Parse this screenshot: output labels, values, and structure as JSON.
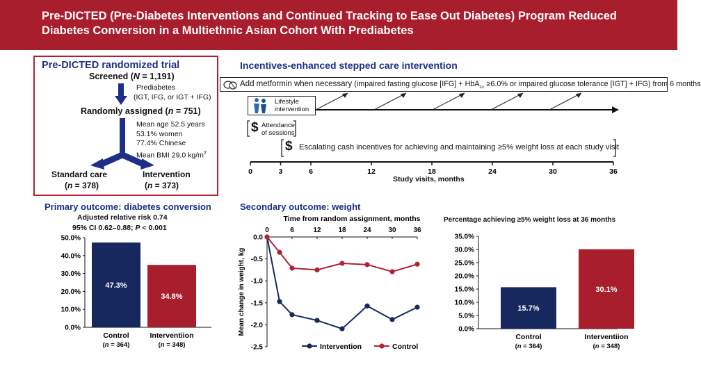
{
  "banner": {
    "title_line1": "Pre-DICTED (Pre-Diabetes Interventions and Continued Tracking to Ease Out Diabetes) Program Reduced",
    "title_line2": "Diabetes Conversion in a Multiethnic Asian Cohort With Prediabetes"
  },
  "trial": {
    "heading": "Pre-DICTED randomized trial",
    "screened_label": "Screened (",
    "screened_n": "N",
    "screened_value": " = 1,191)",
    "prediabetes_label": "Prediabetes",
    "prediabetes_detail": "(IGT, IFG, or IGT + IFG)",
    "randomized_label": "Randomly assigned (",
    "randomized_n": "n",
    "randomized_value": " = 751)",
    "stats": [
      "Mean age 52.5 years",
      "53.1% women",
      "77.4% Chinese",
      "Mean BMI 29.0 kg/m"
    ],
    "bmi_superscript": "2",
    "standard_label": "Standard care",
    "standard_n": "n",
    "standard_value": " = 378)",
    "intervention_label": "Intervention",
    "intervention_n": "n",
    "intervention_value": " = 373)",
    "open_paren": "("
  },
  "intervention": {
    "heading": "Incentives-enhanced stepped care intervention",
    "metformin_text_a": "Add metformin when necessary ",
    "metformin_text_b": "(impaired fasting glucose [IFG] + HbA",
    "metformin_sub": "1c",
    "metformin_text_c": " ≥6.0% or impaired glucose tolerance [IGT] + IFG) from 6 months",
    "lifestyle_label_1": "Lifestyle",
    "lifestyle_label_2": "intervention",
    "attendance_1": "Attendance",
    "attendance_2": "of sessions",
    "cash_text": "Escalating cash incentives for achieving and maintaining ≥5% weight loss at each study visit",
    "axis_ticks": [
      "0",
      "3",
      "6",
      "12",
      "18",
      "24",
      "30",
      "36"
    ],
    "axis_label": "Study visits, months",
    "dollar": "$"
  },
  "primary": {
    "heading": "Primary outcome: diabetes conversion",
    "risk_line1": "Adjusted relative risk 0.74",
    "risk_line2_a": "95% CI 0.62–0.88; ",
    "risk_line2_p": "P",
    "risk_line2_b": " < 0.001"
  },
  "secondary": {
    "heading": "Secondary outcome: weight"
  },
  "chart_data": [
    {
      "type": "bar",
      "categories": [
        "Control",
        "Interventiion"
      ],
      "category_ns": [
        "(n = 364)",
        "(n = 348)"
      ],
      "values": [
        47.3,
        34.8
      ],
      "value_labels": [
        "47.3%",
        "34.8%"
      ],
      "yticks": [
        "50.0%",
        "40.0%",
        "30.0%",
        "20.0%",
        "10.0%",
        "0.0%"
      ],
      "ylim": [
        0,
        50
      ],
      "colors": [
        "#17285f",
        "#a81e2d"
      ]
    },
    {
      "type": "line",
      "xlabel": "Time from random assignment, months",
      "ylabel": "Mean change in weight, kg",
      "x": [
        0,
        3,
        6,
        12,
        18,
        24,
        30,
        36
      ],
      "xticks": [
        "0",
        "6",
        "12",
        "18",
        "24",
        "30",
        "36"
      ],
      "yticks": [
        "0.0",
        "-0.5",
        "-1.0",
        "-1.5",
        "-2.0",
        "-2.5"
      ],
      "ylim": [
        -2.5,
        0
      ],
      "series": [
        {
          "name": "Intervention",
          "color": "#17285f",
          "values": [
            0.0,
            -1.47,
            -1.77,
            -1.9,
            -2.09,
            -1.57,
            -1.88,
            -1.6
          ]
        },
        {
          "name": "Control",
          "color": "#b22234",
          "values": [
            0.0,
            -0.35,
            -0.71,
            -0.75,
            -0.6,
            -0.63,
            -0.79,
            -0.62
          ]
        }
      ]
    },
    {
      "type": "bar",
      "title": "Percentage achieving ≥5% weight loss at 36 months",
      "categories": [
        "Control",
        "Interventiion"
      ],
      "category_ns": [
        "(n = 364)",
        "(n = 348)"
      ],
      "values": [
        15.7,
        30.1
      ],
      "value_labels": [
        "15.7%",
        "30.1%"
      ],
      "yticks": [
        "35.0%",
        "30.0%",
        "25.0%",
        "20.0%",
        "15.0%",
        "10.0%",
        "5.0%",
        "0.0%"
      ],
      "ylim": [
        0,
        35
      ],
      "colors": [
        "#17285f",
        "#a81e2d"
      ]
    }
  ]
}
